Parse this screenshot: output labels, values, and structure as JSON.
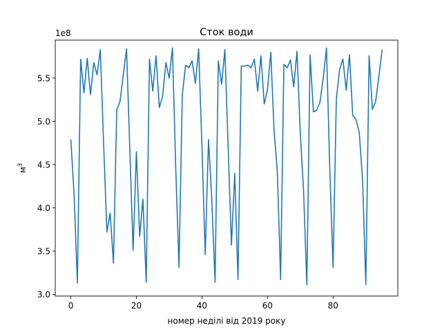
{
  "chart_data": {
    "type": "line",
    "title": "Сток води",
    "xlabel": "номер неділі від 2019 року",
    "ylabel_base": "м",
    "ylabel_sup": "3",
    "y_offset_label": "1e8",
    "xlim": [
      -4.75,
      99.75
    ],
    "ylim": [
      2.98,
      5.94
    ],
    "xticks": [
      0,
      20,
      40,
      60,
      80
    ],
    "xtick_labels": [
      "0",
      "20",
      "40",
      "60",
      "80"
    ],
    "yticks": [
      3.0,
      3.5,
      4.0,
      4.5,
      5.0,
      5.5
    ],
    "ytick_labels": [
      "3.0",
      "3.5",
      "4.0",
      "4.5",
      "5.0",
      "5.5"
    ],
    "line_color": "#1f77b4",
    "grid": false,
    "series": [
      {
        "values": [
          4.79,
          4.15,
          3.13,
          5.72,
          5.33,
          5.73,
          5.31,
          5.68,
          5.54,
          5.83,
          4.75,
          3.72,
          3.94,
          3.36,
          5.13,
          5.23,
          5.54,
          5.84,
          4.67,
          3.51,
          4.65,
          3.67,
          4.1,
          3.14,
          5.72,
          5.35,
          5.76,
          5.16,
          5.29,
          5.68,
          5.5,
          5.85,
          4.47,
          3.31,
          5.3,
          5.65,
          5.62,
          5.7,
          5.44,
          5.84,
          4.71,
          3.46,
          4.79,
          4.1,
          3.14,
          5.7,
          5.43,
          5.83,
          4.7,
          3.57,
          4.4,
          3.17,
          5.64,
          5.64,
          5.65,
          5.62,
          5.72,
          5.35,
          5.76,
          5.2,
          5.37,
          5.8,
          4.9,
          4.42,
          3.17,
          5.66,
          5.62,
          5.71,
          5.4,
          5.81,
          4.86,
          4.2,
          3.11,
          5.77,
          5.11,
          5.13,
          5.22,
          5.5,
          5.85,
          4.45,
          3.31,
          5.26,
          5.6,
          5.72,
          5.36,
          5.77,
          5.07,
          5.02,
          4.87,
          4.32,
          3.11,
          5.76,
          5.14,
          5.23,
          5.53,
          5.83
        ]
      }
    ]
  }
}
